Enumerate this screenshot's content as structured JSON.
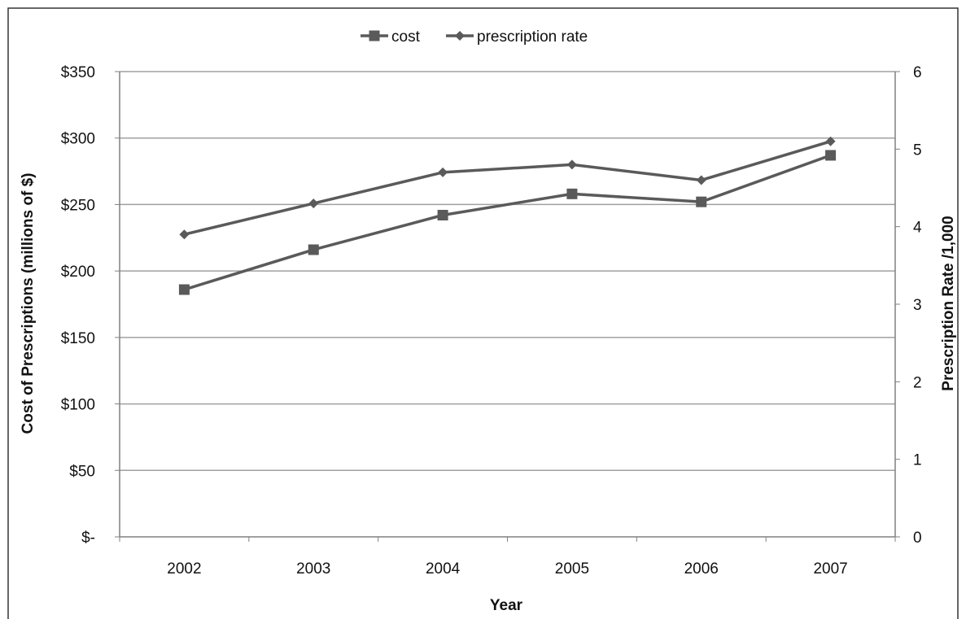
{
  "chart_data": {
    "type": "line",
    "categories": [
      "2002",
      "2003",
      "2004",
      "2005",
      "2006",
      "2007"
    ],
    "series": [
      {
        "name": "cost",
        "axis": "left",
        "marker": "square",
        "values": [
          186,
          216,
          242,
          258,
          252,
          287
        ]
      },
      {
        "name": "prescription rate",
        "axis": "right",
        "marker": "diamond",
        "values": [
          3.9,
          4.3,
          4.7,
          4.8,
          4.6,
          5.1
        ]
      }
    ],
    "xlabel": "Year",
    "ylabel_left": "Cost of Prescriptions (millions of $)",
    "ylabel_right": "Prescription Rate /1,000",
    "ylim_left": [
      0,
      350
    ],
    "ylim_right": [
      0,
      6
    ],
    "yticks_left": [
      "$-",
      "$50",
      "$100",
      "$150",
      "$200",
      "$250",
      "$300",
      "$350"
    ],
    "yticks_right": [
      "0",
      "1",
      "2",
      "3",
      "4",
      "5",
      "6"
    ],
    "grid": true,
    "legend_position": "top-center",
    "colors": {
      "line": "#5a5a5a",
      "grid": "#a0a0a0",
      "axis": "#808080",
      "frame": "#333333"
    }
  }
}
